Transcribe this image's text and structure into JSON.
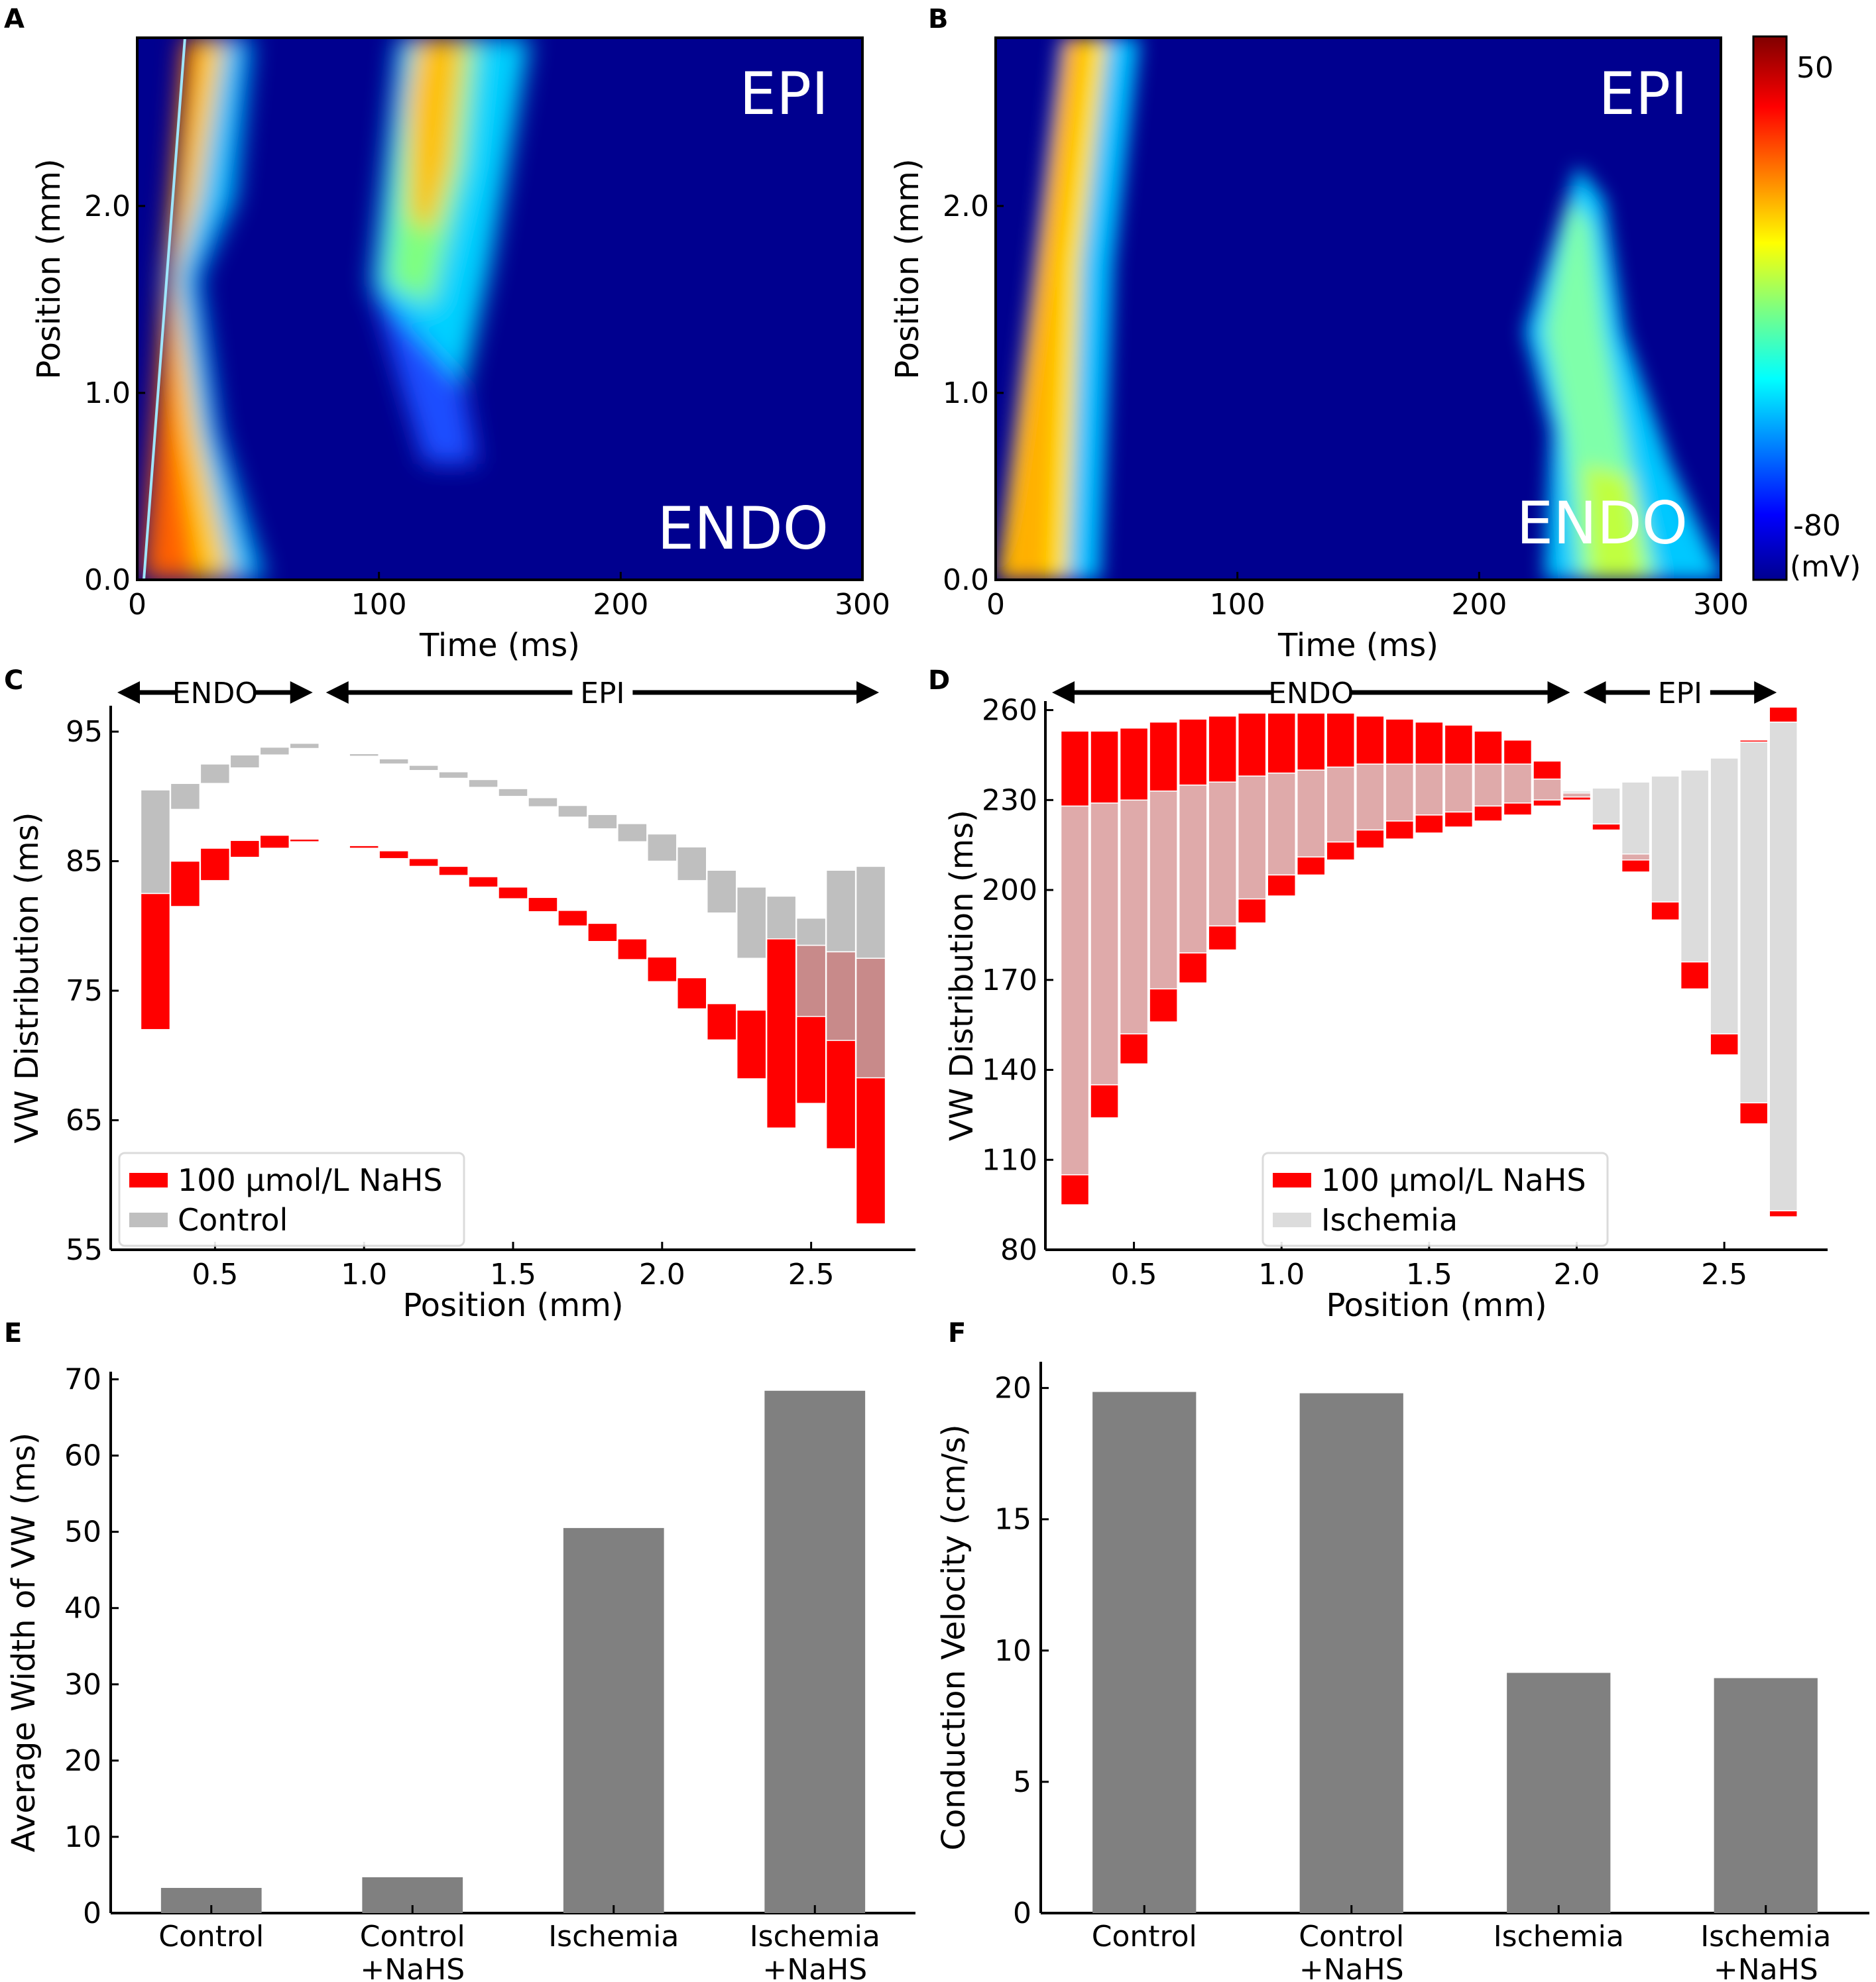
{
  "chart_data": [
    {
      "panel": "A",
      "type": "heatmap",
      "xlabel": "Time (ms)",
      "ylabel": "Position (mm)",
      "xlim": [
        0,
        300
      ],
      "ylim": [
        0,
        2.9
      ],
      "xticks": [
        "0",
        "100",
        "200",
        "300"
      ],
      "yticks": [
        "0.0",
        "1.0",
        "2.0"
      ],
      "annotations": [
        "EPI",
        "ENDO"
      ],
      "description_of_wave": "first activation front travels from ENDO (0 mm, ~2 ms) to EPI (~2.9 mm, ~20 ms); secondary re-excitation near 100-150 ms centred around 1.2-2.9 mm"
    },
    {
      "panel": "B",
      "type": "heatmap",
      "xlabel": "Time (ms)",
      "ylabel": "Position (mm)",
      "xlim": [
        0,
        300
      ],
      "ylim": [
        0,
        2.9
      ],
      "xticks": [
        "0",
        "100",
        "200",
        "300"
      ],
      "yticks": [
        "0.0",
        "1.0",
        "2.0"
      ],
      "annotations": [
        "EPI",
        "ENDO"
      ],
      "colorbar": {
        "max_label": "50",
        "min_label": "-80",
        "unit": "(mV)"
      }
    },
    {
      "panel": "C",
      "type": "bar",
      "xlabel": "Position (mm)",
      "ylabel": "VW Distribution (ms)",
      "xlim": [
        0.15,
        2.85
      ],
      "ylim": [
        55,
        97
      ],
      "xticks": [
        "0.5",
        "1.0",
        "1.5",
        "2.0",
        "2.5"
      ],
      "yticks": [
        "55",
        "65",
        "75",
        "85",
        "95"
      ],
      "regions": [
        {
          "label": "ENDO",
          "from": 0.15,
          "to": 0.85
        },
        {
          "label": "EPI",
          "from": 0.85,
          "to": 2.75
        }
      ],
      "legend": [
        "100 μmol/L NaHS",
        "Control"
      ],
      "x": [
        0.3,
        0.4,
        0.5,
        0.6,
        0.7,
        0.8,
        1.0,
        1.1,
        1.2,
        1.3,
        1.4,
        1.5,
        1.6,
        1.7,
        1.8,
        1.9,
        2.0,
        2.1,
        2.2,
        2.3,
        2.4,
        2.5,
        2.6,
        2.7
      ],
      "series": [
        {
          "name": "Control",
          "low": [
            82.5,
            89,
            91,
            92.2,
            93.2,
            93.7,
            93.1,
            92.5,
            92,
            91.4,
            90.7,
            90,
            89.2,
            88.4,
            87.5,
            86.5,
            85,
            83.5,
            81,
            77.5,
            78.5,
            78.5,
            78,
            77.5
          ],
          "high": [
            90.5,
            91,
            92.5,
            93.2,
            93.8,
            94.1,
            93.3,
            92.9,
            92.4,
            91.9,
            91.3,
            90.6,
            89.9,
            89.3,
            88.6,
            87.9,
            87.1,
            86.1,
            84.3,
            83,
            82.3,
            80.6,
            84.3,
            84.6
          ]
        },
        {
          "name": "100 μmol/L NaHS",
          "low": [
            72,
            81.5,
            83.5,
            85.3,
            86,
            86.5,
            86,
            85.2,
            84.6,
            83.9,
            83,
            82.1,
            81.1,
            80,
            78.8,
            77.4,
            75.7,
            73.6,
            71.2,
            68.2,
            64.4,
            66.3,
            62.8,
            57
          ]
        }
      ]
    },
    {
      "panel": "D",
      "type": "bar",
      "xlabel": "Position (mm)",
      "ylabel": "VW Distribution (ms)",
      "xlim": [
        0.2,
        2.85
      ],
      "ylim": [
        80,
        263
      ],
      "xticks": [
        "0.5",
        "1.0",
        "1.5",
        "2.0",
        "2.5"
      ],
      "yticks": [
        "80",
        "110",
        "140",
        "170",
        "200",
        "230",
        "260"
      ],
      "regions": [
        {
          "label": "ENDO",
          "from": 0.2,
          "to": 2.0
        },
        {
          "label": "EPI",
          "from": 2.0,
          "to": 2.7
        }
      ],
      "legend": [
        "100 μmol/L NaHS",
        "Ischemia"
      ],
      "x": [
        0.3,
        0.4,
        0.5,
        0.6,
        0.7,
        0.8,
        0.9,
        1.0,
        1.1,
        1.2,
        1.3,
        1.4,
        1.5,
        1.6,
        1.7,
        1.8,
        1.9,
        2.0,
        2.1,
        2.2,
        2.3,
        2.4,
        2.5,
        2.6,
        2.7
      ],
      "series": [
        {
          "name": "Ischemia",
          "low": [
            105,
            135,
            152,
            167,
            179,
            188,
            197,
            205,
            211,
            216,
            220,
            223,
            225,
            226,
            228,
            229,
            230,
            231,
            222,
            210,
            196,
            176,
            152,
            129,
            93
          ],
          "high": [
            228,
            229,
            230,
            233,
            235,
            236,
            238,
            239,
            240,
            241,
            242,
            242,
            242,
            242,
            242,
            242,
            237,
            233,
            234,
            236,
            238,
            240,
            244,
            250,
            256
          ]
        },
        {
          "name": "100 μmol/L NaHS",
          "low": [
            95,
            124,
            142,
            156,
            169,
            180,
            189,
            198,
            205,
            210,
            214,
            217,
            219,
            221,
            223,
            225,
            228,
            230,
            220,
            206,
            190,
            167,
            145,
            122,
            91
          ],
          "high": [
            253,
            253,
            254,
            256,
            257,
            258,
            259,
            259,
            259,
            259,
            258,
            257,
            256,
            255,
            253,
            250,
            243,
            233,
            222,
            212,
            195,
            173,
            150,
            128,
            93
          ],
          "cap_high_epi": [
            null,
            null,
            null,
            null,
            null,
            null,
            null,
            null,
            null,
            null,
            null,
            null,
            null,
            null,
            null,
            null,
            null,
            null,
            null,
            null,
            null,
            null,
            null,
            250,
            261
          ]
        }
      ]
    },
    {
      "panel": "E",
      "type": "bar",
      "ylabel": "Average Width of VW (ms)",
      "categories": [
        "Control",
        "Control\n+NaHS",
        "Ischemia",
        "Ischemia\n+NaHS"
      ],
      "category_lines": [
        [
          "Control"
        ],
        [
          "Control",
          "+NaHS"
        ],
        [
          "Ischemia"
        ],
        [
          "Ischemia",
          "+NaHS"
        ]
      ],
      "values": [
        3.3,
        4.7,
        50.5,
        68.5
      ],
      "ylim": [
        0,
        71
      ],
      "yticks": [
        "0",
        "10",
        "20",
        "30",
        "40",
        "50",
        "60",
        "70"
      ]
    },
    {
      "panel": "F",
      "type": "bar",
      "ylabel": "Conduction Velocity (cm/s)",
      "categories": [
        "Control",
        "Control\n+NaHS",
        "Ischemia",
        "Ischemia\n+NaHS"
      ],
      "category_lines": [
        [
          "Control"
        ],
        [
          "Control",
          "+NaHS"
        ],
        [
          "Ischemia"
        ],
        [
          "Ischemia",
          "+NaHS"
        ]
      ],
      "values": [
        19.85,
        19.8,
        9.15,
        8.95
      ],
      "ylim": [
        0,
        21
      ],
      "yticks": [
        "0",
        "5",
        "10",
        "15",
        "20"
      ]
    }
  ],
  "colors": {
    "nahs_red": "#ff0000",
    "control_gray": "#bfbfbf",
    "ischemia_light": "#dcdcdc",
    "ischemia_pink": "#dfaaaa",
    "bar_gray": "#808080"
  }
}
